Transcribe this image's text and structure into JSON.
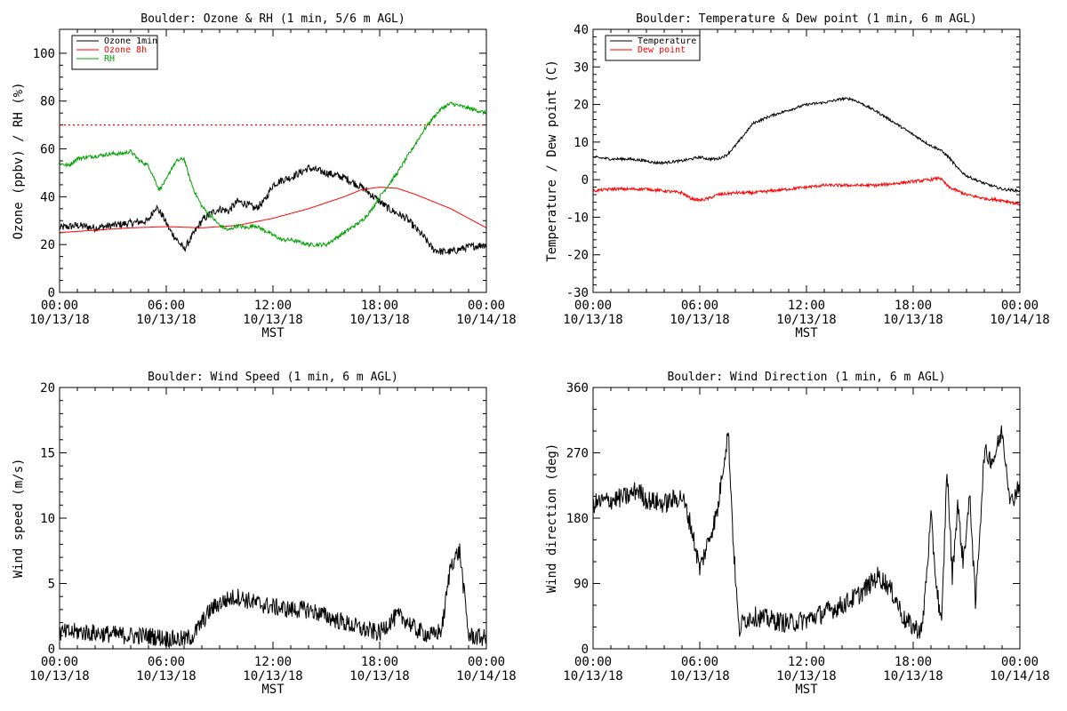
{
  "chart_data": [
    {
      "type": "line",
      "title": "Boulder: Ozone & RH (1 min, 5/6 m AGL)",
      "ylabel": "Ozone (ppbv) / RH (%)",
      "xlabel": "MST",
      "xlim": [
        0,
        24
      ],
      "ylim": [
        0,
        110
      ],
      "yticks": [
        0,
        20,
        40,
        60,
        80,
        100
      ],
      "xtick_labels": [
        [
          "00:00",
          "10/13/18"
        ],
        [
          "06:00",
          "10/13/18"
        ],
        [
          "12:00",
          "10/13/18"
        ],
        [
          "18:00",
          "10/13/18"
        ],
        [
          "00:00",
          "10/14/18"
        ]
      ],
      "legend": {
        "placement": "top-left"
      },
      "hlines": [
        {
          "y": 70,
          "color": "#ff0000",
          "style": "dotted"
        }
      ],
      "series": [
        {
          "name": "Ozone 1min",
          "color": "#000000",
          "noise": 1.6,
          "x": [
            0,
            1,
            2,
            3,
            4,
            5,
            5.4,
            5.8,
            6.2,
            6.6,
            7,
            7.5,
            8,
            8.5,
            9,
            9.5,
            10,
            10.5,
            11,
            11.5,
            12,
            12.5,
            13,
            14,
            15,
            16,
            17,
            17.5,
            18,
            18.5,
            19,
            19.5,
            20,
            20.5,
            21,
            21.5,
            22,
            23,
            24
          ],
          "values": [
            27,
            28,
            27,
            28,
            29,
            30,
            36,
            32,
            26,
            22,
            18,
            24,
            30,
            33,
            35,
            34,
            38,
            37,
            35,
            38,
            45,
            47,
            48,
            52,
            50,
            48,
            44,
            41,
            38,
            35,
            33,
            31,
            27,
            23,
            18,
            17,
            17,
            19,
            20
          ]
        },
        {
          "name": "Ozone 8h",
          "color": "#ff0000",
          "noise": 0,
          "x": [
            0,
            2,
            4,
            6,
            8,
            10,
            12,
            14,
            16,
            17,
            18,
            19,
            20,
            21,
            22,
            23,
            24
          ],
          "values": [
            25,
            26,
            27,
            27.5,
            27,
            28,
            31,
            35,
            40,
            43,
            44,
            43.5,
            41,
            38,
            35,
            31,
            27
          ]
        },
        {
          "name": "RH",
          "color": "#00a000",
          "noise": 0.8,
          "x": [
            0,
            0.5,
            1,
            2,
            3,
            3.5,
            4,
            4.5,
            5,
            5.3,
            5.6,
            6,
            6.3,
            6.6,
            7,
            7.3,
            7.6,
            8,
            8.5,
            9,
            9.5,
            10,
            10.5,
            11,
            11.5,
            12,
            12.5,
            13,
            14,
            15,
            16,
            17,
            17.5,
            18,
            18.5,
            19,
            19.5,
            20,
            20.5,
            21,
            21.5,
            22,
            22.5,
            23,
            23.5,
            24
          ],
          "values": [
            54,
            53,
            56,
            57,
            58,
            58,
            59,
            55,
            53,
            48,
            43,
            47,
            52,
            55,
            56,
            48,
            42,
            36,
            32,
            28,
            26,
            28,
            27,
            28,
            26,
            24,
            22,
            22,
            20,
            20,
            25,
            30,
            34,
            40,
            45,
            50,
            56,
            62,
            68,
            73,
            77,
            79,
            78,
            77,
            76,
            75
          ]
        }
      ]
    },
    {
      "type": "line",
      "title": "Boulder: Temperature & Dew point (1 min, 6 m AGL)",
      "ylabel": "Temperature / Dew point (C)",
      "xlabel": "MST",
      "xlim": [
        0,
        24
      ],
      "ylim": [
        -30,
        40
      ],
      "yticks": [
        -30,
        -20,
        -10,
        0,
        10,
        20,
        30,
        40
      ],
      "xtick_labels": [
        [
          "00:00",
          "10/13/18"
        ],
        [
          "06:00",
          "10/13/18"
        ],
        [
          "12:00",
          "10/13/18"
        ],
        [
          "18:00",
          "10/13/18"
        ],
        [
          "00:00",
          "10/14/18"
        ]
      ],
      "legend": {
        "placement": "top-left"
      },
      "hlines": [],
      "series": [
        {
          "name": "Temperature",
          "color": "#000000",
          "noise": 0.35,
          "x": [
            0,
            1,
            2,
            3,
            3.5,
            4,
            4.5,
            5,
            5.5,
            6,
            6.5,
            7,
            7.5,
            8,
            8.5,
            9,
            9.5,
            10,
            11,
            12,
            13,
            14,
            14.5,
            15,
            16,
            17,
            18,
            19,
            19.5,
            20,
            20.5,
            21,
            22,
            23,
            24
          ],
          "values": [
            6,
            5.5,
            5.5,
            5,
            4.5,
            4.5,
            4.8,
            5,
            5.5,
            6,
            5.5,
            5.5,
            6.5,
            9,
            12,
            15,
            16,
            17,
            18.5,
            20,
            20.5,
            21.5,
            21.5,
            20.5,
            18,
            15,
            12,
            9,
            8,
            6,
            3,
            1,
            -1,
            -2.5,
            -3
          ]
        },
        {
          "name": "Dew point",
          "color": "#ff0000",
          "noise": 0.4,
          "x": [
            0,
            1,
            2,
            3,
            4,
            5,
            5.5,
            6,
            6.5,
            7,
            8,
            9,
            10,
            11,
            12,
            13,
            14,
            15,
            16,
            17,
            18,
            19,
            19.5,
            20,
            20.5,
            21,
            22,
            23,
            24
          ],
          "values": [
            -3,
            -2.5,
            -2.5,
            -2.5,
            -3,
            -3.5,
            -5,
            -5.5,
            -5,
            -4,
            -3.5,
            -3.5,
            -3,
            -2.5,
            -2,
            -1.5,
            -1.5,
            -1.5,
            -1.5,
            -1,
            -0.5,
            0,
            0.5,
            -2,
            -3,
            -4,
            -5,
            -5.5,
            -6.5
          ]
        }
      ]
    },
    {
      "type": "line",
      "title": "Boulder: Wind Speed (1 min, 6 m AGL)",
      "ylabel": "Wind speed (m/s)",
      "xlabel": "MST",
      "xlim": [
        0,
        24
      ],
      "ylim": [
        0,
        20
      ],
      "yticks": [
        0,
        5,
        10,
        15,
        20
      ],
      "xtick_labels": [
        [
          "00:00",
          "10/13/18"
        ],
        [
          "06:00",
          "10/13/18"
        ],
        [
          "12:00",
          "10/13/18"
        ],
        [
          "18:00",
          "10/13/18"
        ],
        [
          "00:00",
          "10/14/18"
        ]
      ],
      "legend": null,
      "hlines": [],
      "series": [
        {
          "name": "",
          "color": "#000000",
          "noise": 0.7,
          "x": [
            0,
            1,
            2,
            3,
            4,
            5,
            6,
            7,
            7.5,
            8,
            8.5,
            9,
            9.5,
            10,
            11,
            12,
            13,
            14,
            15,
            16,
            17,
            18,
            18.5,
            19,
            19.5,
            20,
            20.5,
            21,
            21.5,
            22,
            22.5,
            23,
            24
          ],
          "values": [
            1.2,
            1.3,
            1.2,
            1.1,
            1.0,
            1.0,
            0.8,
            0.7,
            1.0,
            2.0,
            3.0,
            3.5,
            3.8,
            4.0,
            3.5,
            3.2,
            3.0,
            3.0,
            2.5,
            2.0,
            1.5,
            1.2,
            2.0,
            2.5,
            2.2,
            1.5,
            1.2,
            1.0,
            1.5,
            6.5,
            7.5,
            1.0,
            0.8
          ]
        }
      ]
    },
    {
      "type": "line",
      "title": "Boulder: Wind Direction (1 min, 6 m AGL)",
      "ylabel": "Wind direction (deg)",
      "xlabel": "MST",
      "xlim": [
        0,
        24
      ],
      "ylim": [
        0,
        360
      ],
      "yticks": [
        0,
        90,
        180,
        270,
        360
      ],
      "xtick_labels": [
        [
          "00:00",
          "10/13/18"
        ],
        [
          "06:00",
          "10/13/18"
        ],
        [
          "12:00",
          "10/13/18"
        ],
        [
          "18:00",
          "10/13/18"
        ],
        [
          "00:00",
          "10/14/18"
        ]
      ],
      "legend": null,
      "hlines": [],
      "series": [
        {
          "name": "",
          "color": "#000000",
          "noise": 14,
          "x": [
            0,
            1,
            2,
            2.5,
            3,
            4,
            5,
            5.5,
            6,
            6.5,
            7,
            7.3,
            7.6,
            7.9,
            8.2,
            8.5,
            9,
            10,
            11,
            12,
            13,
            14,
            15,
            16,
            16.5,
            17,
            17.5,
            18,
            18.5,
            19,
            19.3,
            19.6,
            19.9,
            20.2,
            20.5,
            20.8,
            21.2,
            21.5,
            22,
            22.5,
            23,
            23.5,
            24
          ],
          "values": [
            200,
            205,
            210,
            220,
            205,
            200,
            210,
            170,
            110,
            150,
            190,
            250,
            300,
            140,
            25,
            40,
            45,
            40,
            35,
            40,
            50,
            60,
            75,
            100,
            90,
            70,
            40,
            30,
            25,
            180,
            90,
            30,
            250,
            100,
            200,
            120,
            210,
            60,
            270,
            260,
            300,
            200,
            230
          ]
        }
      ]
    }
  ]
}
